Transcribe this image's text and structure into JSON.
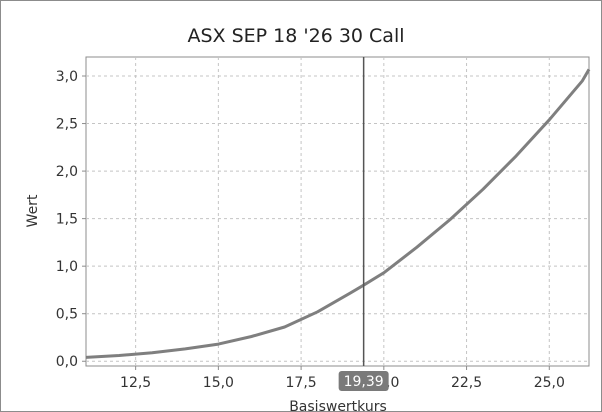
{
  "chart_data": {
    "type": "line",
    "title": "ASX SEP 18 '26 30 Call",
    "xlabel": "Basiswertkurs",
    "ylabel": "Wert",
    "xlim": [
      11.0,
      26.2
    ],
    "ylim": [
      -0.05,
      3.2
    ],
    "x_ticks": [
      12.5,
      15.0,
      17.5,
      20.0,
      22.5,
      25.0
    ],
    "x_tick_labels": [
      "12,5",
      "15,0",
      "17,5",
      "20,0",
      "22,5",
      "25,0"
    ],
    "y_ticks": [
      0.0,
      0.5,
      1.0,
      1.5,
      2.0,
      2.5,
      3.0
    ],
    "y_tick_labels": [
      "0,0",
      "0,5",
      "1,0",
      "1,5",
      "2,0",
      "2,5",
      "3,0"
    ],
    "grid": true,
    "marker": {
      "x": 19.39,
      "label": "19,39"
    },
    "series": [
      {
        "color": "#7f7f7f",
        "x": [
          11.0,
          12.0,
          13.0,
          14.0,
          15.0,
          16.0,
          17.0,
          18.0,
          19.0,
          19.39,
          20.0,
          21.0,
          22.0,
          23.0,
          24.0,
          25.0,
          26.0,
          26.2
        ],
        "y": [
          0.04,
          0.06,
          0.09,
          0.13,
          0.18,
          0.26,
          0.36,
          0.52,
          0.72,
          0.8,
          0.93,
          1.2,
          1.49,
          1.81,
          2.16,
          2.54,
          2.95,
          3.07
        ]
      }
    ]
  }
}
